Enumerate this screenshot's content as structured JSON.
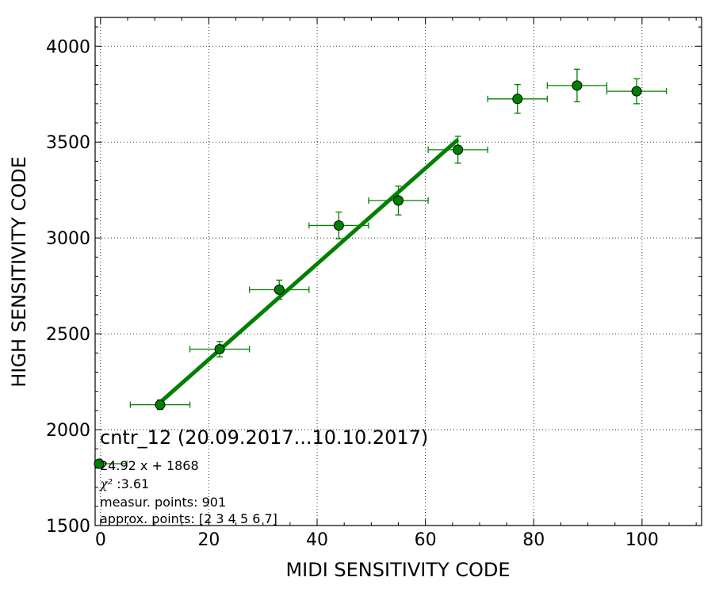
{
  "chart_data": {
    "type": "scatter",
    "xlabel": "MIDI SENSITIVITY CODE",
    "ylabel": "HIGH SENSITIVITY CODE",
    "xlim": [
      -1,
      111
    ],
    "ylim": [
      1500,
      4150
    ],
    "xticks": [
      0,
      20,
      40,
      60,
      80,
      100
    ],
    "yticks": [
      1500,
      2000,
      2500,
      3000,
      3500,
      4000
    ],
    "grid": true,
    "colors": {
      "data": "#008000",
      "fit": "#008000",
      "marker_edge": "#000000"
    },
    "series": [
      {
        "x": [
          11,
          22,
          33,
          44,
          55,
          66,
          77,
          88,
          99
        ],
        "y": [
          2130,
          2420,
          2730,
          3065,
          3195,
          3460,
          3725,
          3795,
          3765
        ],
        "xerr": [
          5.5,
          5.5,
          5.5,
          5.5,
          5.5,
          5.5,
          5.5,
          5.5,
          5.5
        ],
        "yerr": [
          25,
          40,
          50,
          70,
          75,
          70,
          75,
          85,
          65
        ]
      }
    ],
    "fit": {
      "slope": 24.92,
      "intercept": 1868,
      "x_range": [
        11,
        66
      ]
    },
    "annotation": {
      "title": "cntr_12 (20.09.2017...10.10.2017)",
      "equation": "24.92 x + 1868",
      "chi2_label": "χ²",
      "chi2_value": " :3.61",
      "measur_points": "measur. points: 901",
      "approx_points": "approx. points: [2 3 4 5 6 7]"
    }
  }
}
